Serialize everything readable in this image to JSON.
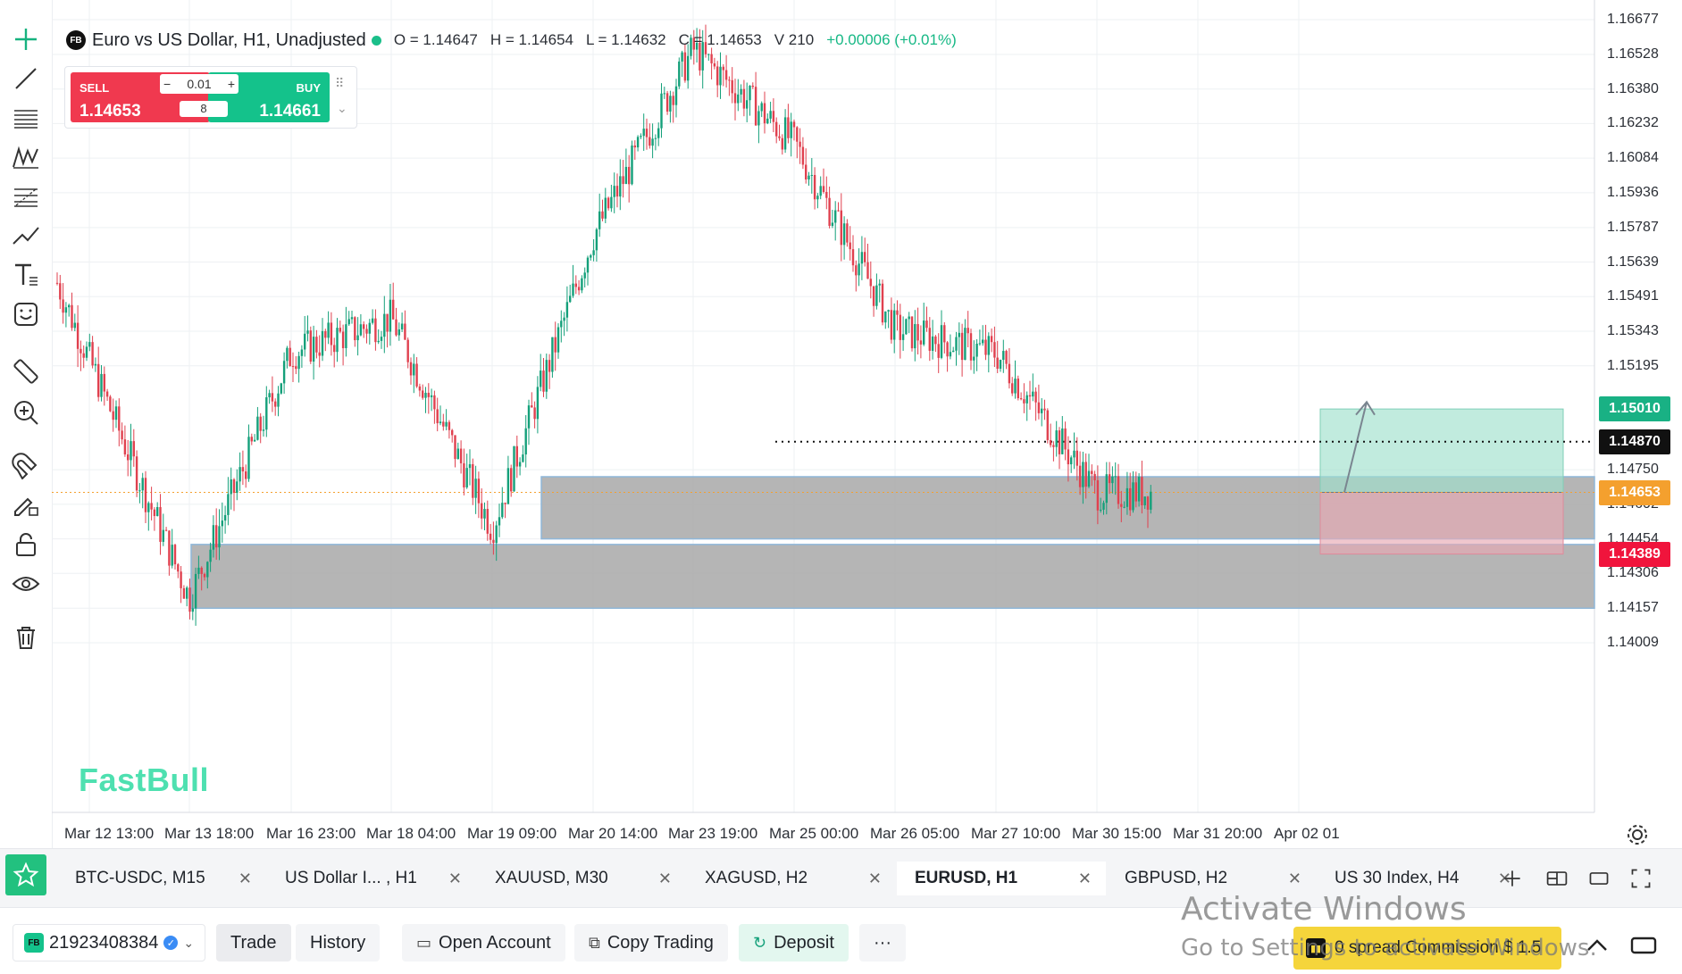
{
  "instrument": {
    "badge": "FB",
    "title": "Euro vs US Dollar, H1, Unadjusted",
    "open": "O = 1.14647",
    "high": "H = 1.14654",
    "low": "L = 1.14632",
    "close": "C = 1.14653",
    "volume": "V 210",
    "change": "+0.00006 (+0.01%)"
  },
  "trade_widget": {
    "sell_label": "SELL",
    "buy_label": "BUY",
    "sell_price": "1.14653",
    "buy_price": "1.14661",
    "lot_size": "0.01",
    "spread": "8",
    "minus": "−",
    "plus": "+"
  },
  "watermark": "FastBull",
  "price_axis": [
    "1.16677",
    "1.16528",
    "1.16380",
    "1.16232",
    "1.16084",
    "1.15936",
    "1.15787",
    "1.15639",
    "1.15491",
    "1.15343",
    "1.15195",
    "1.14750",
    "1.14602",
    "1.14454",
    "1.14306",
    "1.14157",
    "1.14009"
  ],
  "price_tags": {
    "take_profit": "1.15010",
    "line_level": "1.14870",
    "current": "1.14653",
    "stop_loss": "1.14389"
  },
  "time_axis": [
    "Mar 12 13:00",
    "Mar 13 18:00",
    "Mar 16 23:00",
    "Mar 18 04:00",
    "Mar 19 09:00",
    "Mar 20 14:00",
    "Mar 23 19:00",
    "Mar 25 00:00",
    "Mar 26 05:00",
    "Mar 27 10:00",
    "Mar 30 15:00",
    "Mar 31 20:00",
    "Apr 02 01"
  ],
  "chart_data": {
    "type": "candlestick",
    "symbol": "EURUSD",
    "timeframe": "H1",
    "ylim": [
      1.1395,
      1.1674
    ],
    "x": [
      "Mar 12 13:00",
      "Mar 13 18:00",
      "Mar 16 23:00",
      "Mar 18 04:00",
      "Mar 19 09:00",
      "Mar 20 14:00",
      "Mar 23 19:00",
      "Mar 25 00:00",
      "Mar 26 05:00",
      "Mar 27 10:00",
      "Mar 30 15:00"
    ],
    "close_path": [
      1.155,
      1.142,
      1.153,
      1.1535,
      1.145,
      1.157,
      1.164,
      1.161,
      1.154,
      1.152,
      1.14653
    ],
    "zones": [
      {
        "from": 1.14454,
        "to": 1.1472
      },
      {
        "from": 1.14157,
        "to": 1.1443
      }
    ],
    "position": {
      "entry": 1.14653,
      "take_profit": 1.1501,
      "stop_loss": 1.14389
    },
    "horizontal_line": 1.1487
  },
  "tabs": [
    {
      "label": "BTC-USDC, M15",
      "active": false
    },
    {
      "label": "US Dollar I... , H1",
      "active": false
    },
    {
      "label": "XAUUSD, M30",
      "active": false
    },
    {
      "label": "XAGUSD, H2",
      "active": false
    },
    {
      "label": "EURUSD, H1",
      "active": true
    },
    {
      "label": "GBPUSD, H2",
      "active": false
    },
    {
      "label": "US 30 Index, H4",
      "active": false
    }
  ],
  "bottom": {
    "account_badge": "FB",
    "account_id": "21923408384",
    "trade": "Trade",
    "history": "History",
    "open_account": "Open Account",
    "copy_trading": "Copy Trading",
    "deposit": "Deposit",
    "more": "···",
    "promo": "0 spread Commission $ 1.5"
  },
  "os_overlay": {
    "line1": "Activate Windows",
    "line2": "Go to Settings to activate Windows."
  },
  "colors": {
    "up": "#14a07a",
    "down": "#e0414f",
    "zone": "#a8a8a8",
    "tp": "#9fe0cc",
    "sl": "#e8a9b4",
    "accent": "#14c28b"
  }
}
